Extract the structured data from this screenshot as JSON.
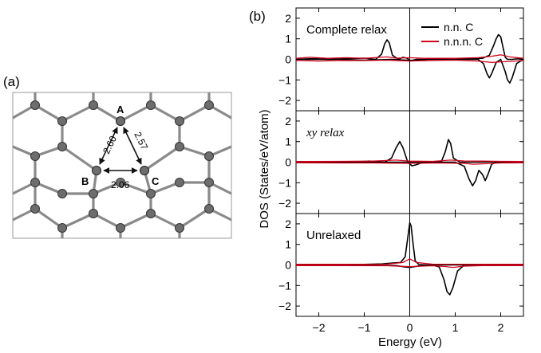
{
  "panel_a": {
    "label": "(a)",
    "atoms": {
      "a": "A",
      "b": "B",
      "c": "C"
    },
    "distances": {
      "ab": "2.60",
      "ac": "2.57",
      "bc": "2.06"
    }
  },
  "panel_b": {
    "label": "(b)",
    "legend": [
      {
        "label": "n.n. C",
        "color": "#000000"
      },
      {
        "label": "n.n.n. C",
        "color": "#d0021b"
      }
    ]
  },
  "chart_data": {
    "type": "line",
    "xlabel": "Energy (eV)",
    "ylabel": "DOS (States/eV/atom)",
    "xlim": [
      -2.5,
      2.5
    ],
    "xticks": [
      -2,
      -1,
      0,
      1,
      2
    ],
    "ylim": [
      -2.5,
      2.5
    ],
    "yticks": [
      2,
      1,
      0,
      -1,
      -2
    ],
    "vline_at": 0,
    "panels": [
      {
        "title": "Complete relax",
        "series": [
          {
            "name": "n.n. C",
            "color": "#000000",
            "x": [
              -2.5,
              -2.1,
              -1.8,
              -1.4,
              -1.0,
              -0.75,
              -0.62,
              -0.55,
              -0.5,
              -0.45,
              -0.38,
              -0.25,
              -0.15,
              -0.05,
              0.0,
              0.05,
              0.15,
              0.3,
              0.6,
              1.0,
              1.3,
              1.6,
              1.75,
              1.85,
              1.9,
              1.95,
              2.0,
              2.05,
              2.1,
              2.15,
              2.25,
              2.4,
              2.5
            ],
            "y": [
              0.0,
              0.04,
              0.0,
              0.03,
              0.06,
              0.0,
              0.25,
              0.75,
              0.95,
              0.8,
              0.2,
              0.0,
              0.1,
              0.05,
              -0.08,
              -0.05,
              0.0,
              0.0,
              0.03,
              0.0,
              0.03,
              0.05,
              0.2,
              0.7,
              1.0,
              1.2,
              1.1,
              0.6,
              0.1,
              0.0,
              0.0,
              0.03,
              0.0
            ]
          },
          {
            "name": "n.n. C (spin down)",
            "color": "#000000",
            "x": [
              -2.5,
              -1.6,
              -1.0,
              -0.4,
              0.0,
              0.4,
              1.0,
              1.5,
              1.62,
              1.7,
              1.75,
              1.8,
              1.9,
              2.0,
              2.1,
              2.15,
              2.2,
              2.25,
              2.35,
              2.5
            ],
            "y": [
              0.0,
              0.0,
              -0.04,
              0.0,
              -0.05,
              0.0,
              0.0,
              0.0,
              -0.2,
              -0.7,
              -0.9,
              -0.7,
              -0.15,
              0.0,
              -0.6,
              -1.0,
              -1.15,
              -0.9,
              -0.2,
              0.0
            ]
          },
          {
            "name": "n.n.n. C",
            "color": "#d0021b",
            "x": [
              -2.5,
              -2.2,
              -1.8,
              -1.4,
              -1.0,
              -0.5,
              -0.3,
              0.0,
              0.3,
              1.0,
              1.5,
              1.8,
              2.0,
              2.2,
              2.5
            ],
            "y": [
              0.05,
              0.1,
              0.05,
              0.08,
              0.05,
              0.12,
              0.06,
              0.08,
              0.05,
              0.05,
              0.08,
              0.15,
              0.22,
              0.12,
              0.05
            ]
          },
          {
            "name": "n.n.n. C (spin down)",
            "color": "#d0021b",
            "x": [
              -2.5,
              -2.0,
              -1.5,
              -1.0,
              -0.5,
              0.0,
              0.5,
              1.0,
              1.5,
              1.8,
              2.0,
              2.2,
              2.5
            ],
            "y": [
              -0.05,
              -0.08,
              -0.05,
              -0.06,
              -0.04,
              -0.08,
              -0.05,
              -0.04,
              -0.08,
              -0.15,
              -0.12,
              -0.1,
              -0.05
            ]
          }
        ]
      },
      {
        "title": "xy relax",
        "series": [
          {
            "name": "n.n. C",
            "color": "#000000",
            "x": [
              -2.5,
              -1.2,
              -0.9,
              -0.55,
              -0.4,
              -0.3,
              -0.22,
              -0.15,
              -0.05,
              0.0,
              0.4,
              0.7,
              0.78,
              0.85,
              0.9,
              0.96,
              1.1,
              1.5,
              2.0,
              2.5
            ],
            "y": [
              0.0,
              0.0,
              0.05,
              0.0,
              0.2,
              0.7,
              1.0,
              0.7,
              0.05,
              0.0,
              0.0,
              0.05,
              0.5,
              1.1,
              0.9,
              0.2,
              0.0,
              0.0,
              0.02,
              0.0
            ]
          },
          {
            "name": "n.n. C (spin down)",
            "color": "#000000",
            "x": [
              -2.5,
              -1.5,
              -0.5,
              -0.05,
              0.05,
              0.15,
              0.3,
              0.6,
              1.0,
              1.2,
              1.3,
              1.38,
              1.45,
              1.52,
              1.6,
              1.66,
              1.72,
              1.8,
              1.9,
              2.0,
              2.5
            ],
            "y": [
              0.0,
              0.0,
              0.0,
              0.0,
              -0.18,
              -0.12,
              0.0,
              0.0,
              0.0,
              -0.2,
              -0.8,
              -1.15,
              -0.9,
              -0.4,
              -0.6,
              -0.9,
              -0.6,
              -0.1,
              0.0,
              0.0,
              0.0
            ]
          },
          {
            "name": "n.n.n. C",
            "color": "#d0021b",
            "x": [
              -2.5,
              -1.5,
              -0.8,
              -0.3,
              0.0,
              0.5,
              0.9,
              1.2,
              1.6,
              2.0,
              2.5
            ],
            "y": [
              0.03,
              0.04,
              0.05,
              0.1,
              0.05,
              0.04,
              0.1,
              0.06,
              0.05,
              0.04,
              0.03
            ]
          },
          {
            "name": "n.n.n. C (spin down)",
            "color": "#d0021b",
            "x": [
              -2.5,
              -1.5,
              -0.8,
              0.0,
              0.6,
              1.2,
              1.4,
              1.6,
              2.0,
              2.5
            ],
            "y": [
              -0.03,
              -0.04,
              -0.04,
              -0.06,
              -0.04,
              -0.06,
              -0.1,
              -0.08,
              -0.04,
              -0.03
            ]
          }
        ]
      },
      {
        "title": "Unrelaxed",
        "series": [
          {
            "name": "n.n. C",
            "color": "#000000",
            "x": [
              -2.5,
              -1.5,
              -0.6,
              -0.35,
              -0.2,
              -0.1,
              -0.05,
              0.0,
              0.03,
              0.08,
              0.12,
              0.2,
              0.4,
              1.0,
              2.0,
              2.5
            ],
            "y": [
              0.0,
              0.0,
              0.05,
              0.1,
              0.12,
              0.4,
              1.2,
              2.05,
              1.9,
              0.9,
              0.2,
              0.02,
              0.0,
              0.0,
              0.0,
              0.0
            ]
          },
          {
            "name": "n.n. C (spin down)",
            "color": "#000000",
            "x": [
              -2.5,
              -1.0,
              -0.3,
              -0.1,
              0.0,
              0.2,
              0.5,
              0.65,
              0.75,
              0.82,
              0.88,
              0.95,
              1.05,
              1.2,
              1.5,
              2.5
            ],
            "y": [
              0.0,
              0.0,
              -0.03,
              -0.1,
              -0.12,
              -0.05,
              0.0,
              -0.1,
              -0.7,
              -1.3,
              -1.45,
              -1.1,
              -0.3,
              0.0,
              0.0,
              0.0
            ]
          },
          {
            "name": "n.n.n. C",
            "color": "#d0021b",
            "x": [
              -2.5,
              -1.5,
              -0.5,
              -0.15,
              0.0,
              0.15,
              0.5,
              1.5,
              2.5
            ],
            "y": [
              0.03,
              0.03,
              0.04,
              0.12,
              0.3,
              0.12,
              0.04,
              0.03,
              0.03
            ]
          },
          {
            "name": "n.n.n. C (spin down)",
            "color": "#d0021b",
            "x": [
              -2.5,
              -1.5,
              -0.5,
              0.0,
              0.5,
              0.8,
              0.95,
              1.2,
              1.6,
              2.5
            ],
            "y": [
              -0.03,
              -0.03,
              -0.04,
              -0.08,
              -0.04,
              -0.08,
              -0.12,
              -0.06,
              -0.03,
              -0.03
            ]
          }
        ]
      }
    ]
  }
}
